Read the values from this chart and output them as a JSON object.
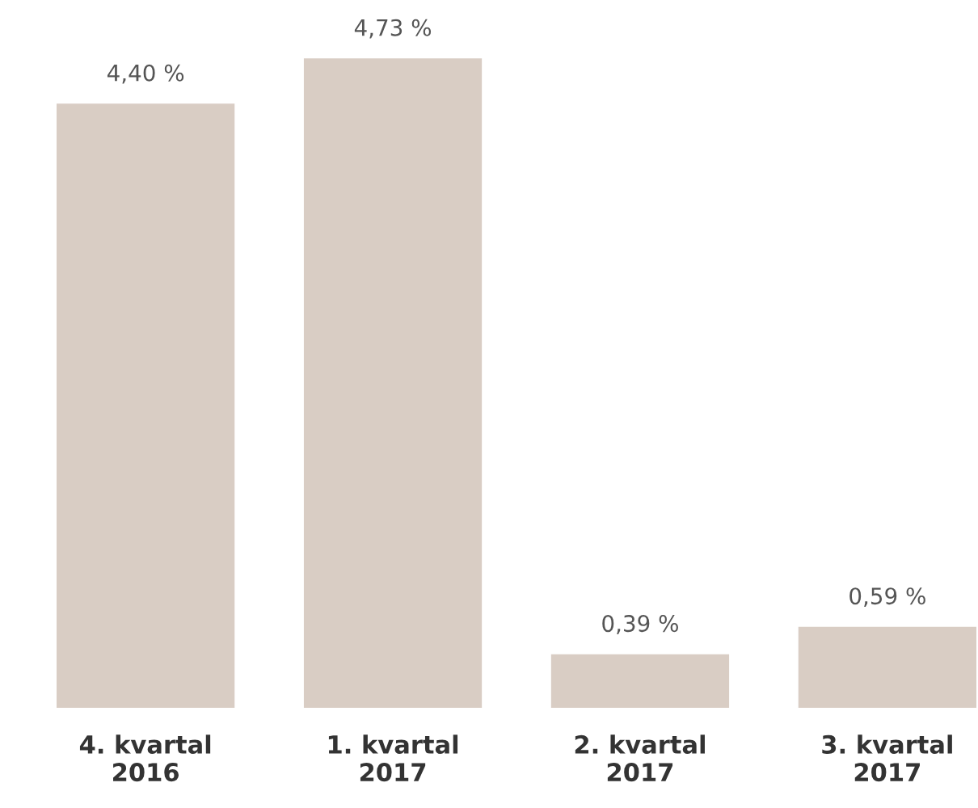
{
  "chart_data": {
    "type": "bar",
    "categories": [
      "4. kvartal\n2016",
      "1. kvartal\n2017",
      "2. kvartal\n2017",
      "3. kvartal\n2017"
    ],
    "values": [
      4.4,
      4.73,
      0.39,
      0.59
    ],
    "value_labels": [
      "4,40 %",
      "4,73 %",
      "0,39 %",
      "0,59 %"
    ],
    "color": "#d9cdc4",
    "grid": false,
    "legend": false
  }
}
